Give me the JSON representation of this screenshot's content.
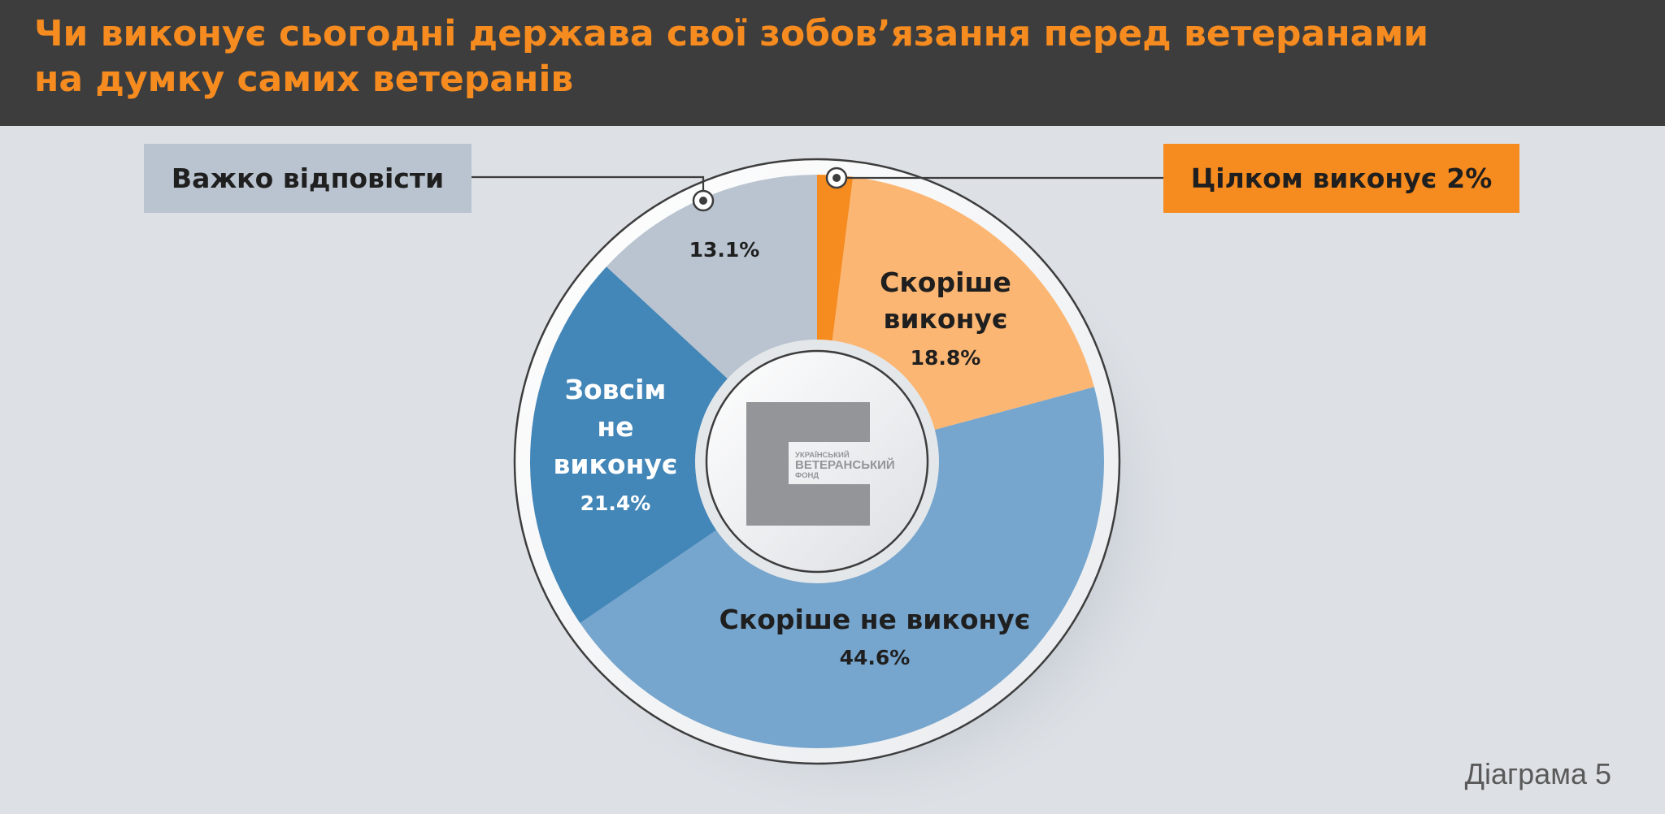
{
  "header": {
    "title_line1": "Чи виконує сьогодні держава свої зобов’язання перед ветеранами",
    "title_line2": "на думку самих ветеранів"
  },
  "chart_data": {
    "type": "pie",
    "title": "Чи виконує сьогодні держава свої зобов’язання перед ветеранами на думку самих ветеранів",
    "slices": [
      {
        "label": "Цілком виконує",
        "value": 2.0,
        "value_text": "2%",
        "color": "#f68b1f"
      },
      {
        "label": "Скоріше виконує",
        "value": 18.8,
        "value_text": "18.8%",
        "color": "#fbb673"
      },
      {
        "label": "Скоріше не виконує",
        "value": 44.6,
        "value_text": "44.6%",
        "color": "#76a5cd"
      },
      {
        "label": "Зовсім не виконує",
        "value": 21.4,
        "value_text": "21.4%",
        "color": "#4386b8"
      },
      {
        "label": "Важко відповісти",
        "value": 13.1,
        "value_text": "13.1%",
        "color": "#bac4d0"
      }
    ],
    "start": "top",
    "direction": "clockwise"
  },
  "labels": {
    "skorishe_vykonuie_l1": "Скоріше",
    "skorishe_vykonuie_l2": "виконує",
    "skorishe_ne_vykonuie": "Скоріше не виконує",
    "zovsim_l1": "Зовсім",
    "zovsim_l2": "не",
    "zovsim_l3": "виконує"
  },
  "callouts": {
    "left": "Важко відповісти",
    "right_label": "Цілком виконує",
    "right_pct": "2%"
  },
  "logo": {
    "line1": "УКРАЇНСЬКИЙ",
    "line2": "ВЕТЕРАНСЬКИЙ",
    "line3": "ФОНД"
  },
  "footer": "Діаграма 5",
  "colors": {
    "accent": "#f68b1f",
    "header_bg": "#3d3d3d",
    "page_bg": "#dde1e6"
  }
}
